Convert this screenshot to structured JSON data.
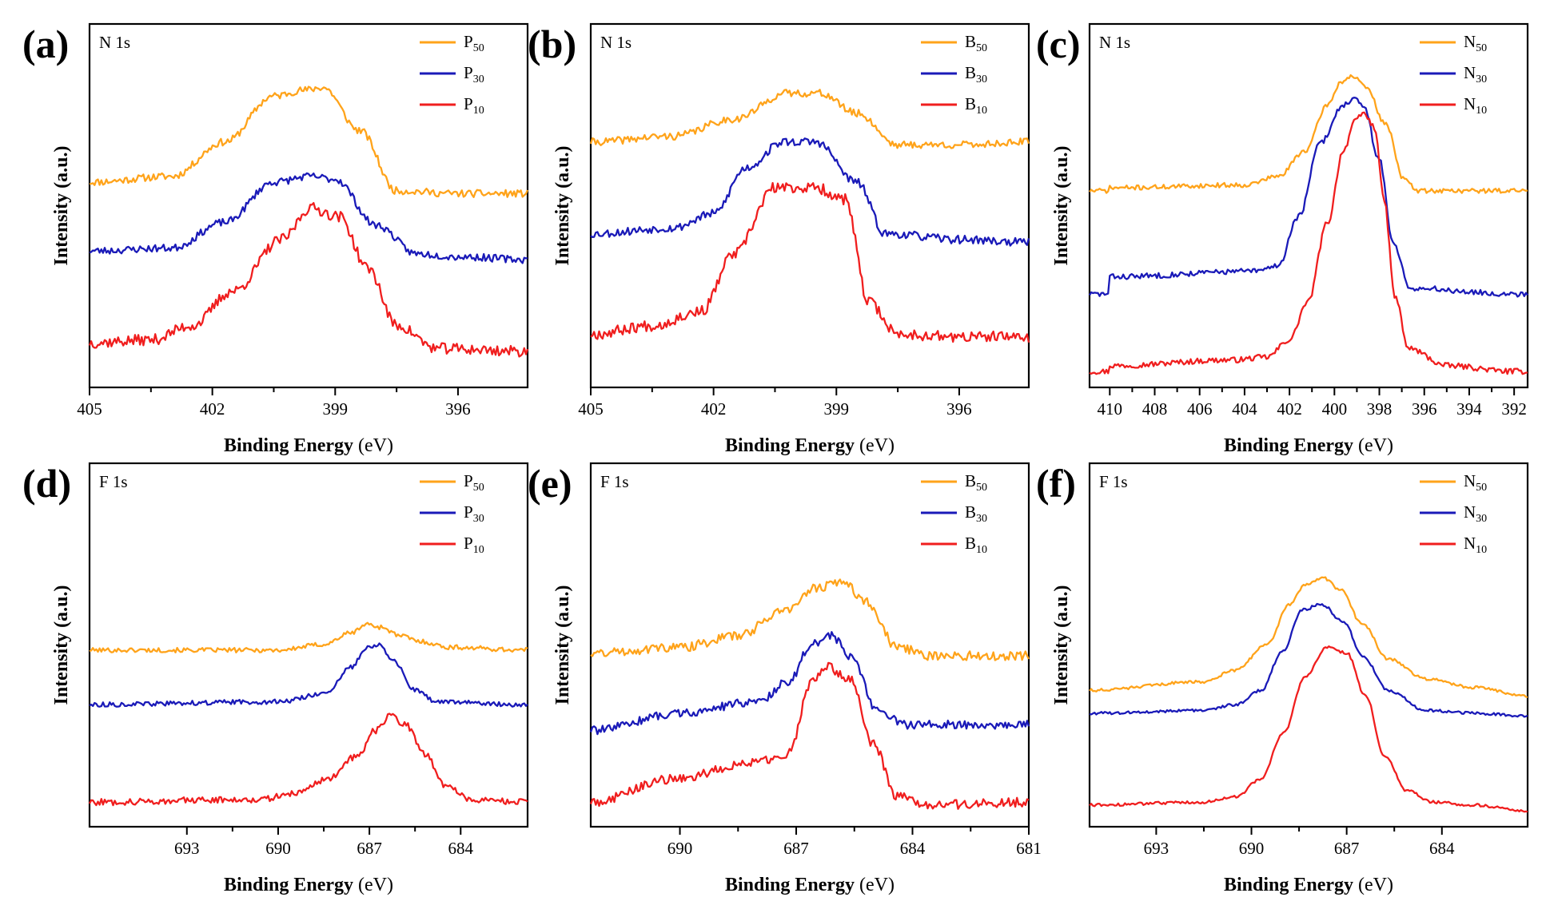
{
  "figure": {
    "axis_title_x_main": "Binding Energy",
    "axis_title_x_unit": "(eV)",
    "axis_title_y": "Intensity (a.u.)",
    "colors": {
      "c50": "#FFA31A",
      "c30": "#1A1AB8",
      "c10": "#F01E1E"
    }
  },
  "chart_data": [
    {
      "panel": "(a)",
      "element": "N 1s",
      "type": "line",
      "xlabel": "Binding Energy (eV)",
      "ylabel": "Intensity (a.u.)",
      "xlim": [
        405,
        394.3
      ],
      "xticks": [
        405,
        402,
        399,
        396
      ],
      "legend_position": "top-right",
      "series": [
        {
          "name": "P50",
          "base": "P",
          "sub": "50",
          "color": "#FFA31A",
          "seed": 11,
          "noise": 0.8,
          "x": [
            405,
            403,
            401.7,
            400.5,
            399.8,
            399.3,
            398.4,
            397.5,
            396,
            394.3
          ],
          "y": [
            66,
            68,
            80,
            96,
            98,
            99,
            84,
            63,
            62,
            62
          ]
        },
        {
          "name": "P30",
          "base": "P",
          "sub": "30",
          "color": "#1A1AB8",
          "seed": 23,
          "noise": 0.8,
          "x": [
            405,
            403,
            401.7,
            400.5,
            399.6,
            399,
            398,
            397,
            396,
            394.3
          ],
          "y": [
            42,
            43,
            52,
            66,
            68,
            67,
            51,
            41,
            40,
            39
          ]
        },
        {
          "name": "P10",
          "base": "P",
          "sub": "10",
          "color": "#F01E1E",
          "seed": 37,
          "noise": 1.2,
          "x": [
            405,
            403.5,
            402.5,
            401.5,
            400.3,
            399.6,
            398.9,
            398.2,
            397.5,
            396.5,
            394.3
          ],
          "y": [
            10,
            11,
            16,
            28,
            46,
            57,
            54,
            36,
            16,
            8,
            7
          ]
        }
      ]
    },
    {
      "panel": "(b)",
      "element": "N 1s",
      "type": "line",
      "xlabel": "Binding Energy (eV)",
      "ylabel": "Intensity (a.u.)",
      "xlim": [
        405,
        394.3
      ],
      "xticks": [
        405,
        402,
        399,
        396
      ],
      "legend_position": "top-right",
      "series": [
        {
          "name": "B50",
          "base": "B",
          "sub": "50",
          "color": "#FFA31A",
          "seed": 41,
          "noise": 0.8,
          "x": [
            405,
            403,
            401.5,
            400.2,
            399.4,
            398.5,
            397.5,
            396,
            394.3
          ],
          "y": [
            80,
            82,
            88,
            97,
            97,
            90,
            79,
            79,
            80
          ]
        },
        {
          "name": "B30",
          "base": "B",
          "sub": "30",
          "color": "#1A1AB8",
          "seed": 53,
          "noise": 0.9,
          "x": [
            405,
            403,
            402,
            401.2,
            400.3,
            399.5,
            398.5,
            397.8,
            396,
            394.3
          ],
          "y": [
            48,
            50,
            55,
            71,
            80,
            80,
            66,
            48,
            46,
            45
          ]
        },
        {
          "name": "B10",
          "base": "B",
          "sub": "10",
          "color": "#F01E1E",
          "seed": 67,
          "noise": 1.2,
          "x": [
            405,
            403.5,
            402.3,
            401.5,
            400.5,
            399.5,
            398.8,
            398.2,
            397.5,
            396,
            394.3
          ],
          "y": [
            13,
            16,
            21,
            41,
            64,
            64,
            60,
            24,
            13,
            12,
            12
          ]
        }
      ]
    },
    {
      "panel": "(c)",
      "element": "N 1s",
      "type": "line",
      "xlabel": "Binding Energy (eV)",
      "ylabel": "Intensity (a.u.)",
      "xlim": [
        410.9,
        391.4
      ],
      "xticks": [
        410,
        408,
        406,
        404,
        402,
        400,
        398,
        396,
        394,
        392
      ],
      "legend_position": "top-right",
      "series": [
        {
          "name": "N50",
          "base": "N",
          "sub": "50",
          "color": "#FFA31A",
          "seed": 71,
          "noise": 0.5,
          "x": [
            410,
            404,
            402.5,
            401.3,
            400.3,
            399.7,
            399.2,
            398.6,
            397.7,
            396.9,
            396.3,
            392
          ],
          "y": [
            64,
            65,
            68,
            77,
            93,
            101,
            103,
            99,
            86,
            67,
            63,
            63
          ]
        },
        {
          "name": "N30",
          "base": "N",
          "sub": "30",
          "color": "#1A1AB8",
          "seed": 83,
          "noise": 0.6,
          "x": [
            410,
            403.4,
            402.5,
            401.6,
            400.6,
            399.6,
            399.1,
            398.7,
            398,
            397.4,
            396.6,
            392
          ],
          "y": [
            33,
            35,
            37,
            54,
            80,
            93,
            95,
            92,
            74,
            45,
            29,
            27
          ]
        },
        {
          "name": "N10",
          "base": "N",
          "sub": "10",
          "color": "#F01E1E",
          "seed": 97,
          "noise": 0.6,
          "x": [
            410,
            404.5,
            403,
            402,
            401.2,
            400.3,
            399.6,
            399.1,
            398.7,
            398.2,
            397.8,
            397.3,
            396.7,
            395,
            392
          ],
          "y": [
            2,
            4,
            5,
            11,
            24,
            52,
            77,
            87,
            90,
            85,
            60,
            26,
            8,
            2,
            0
          ]
        }
      ]
    },
    {
      "panel": "(d)",
      "element": "F 1s",
      "type": "line",
      "xlabel": "Binding Energy (eV)",
      "ylabel": "Intensity (a.u.)",
      "xlim": [
        696.2,
        681.8
      ],
      "xticks": [
        693,
        690,
        687,
        684
      ],
      "legend_position": "top-right",
      "series": [
        {
          "name": "P50",
          "base": "P",
          "sub": "50",
          "color": "#FFA31A",
          "seed": 101,
          "noise": 0.5,
          "x": [
            696.2,
            690,
            688.5,
            687.6,
            687.1,
            686.6,
            686,
            685.3,
            684.4,
            681.8
          ],
          "y": [
            56,
            56,
            58,
            62,
            65,
            64,
            61,
            59,
            57,
            56
          ]
        },
        {
          "name": "P30",
          "base": "P",
          "sub": "30",
          "color": "#1A1AB8",
          "seed": 113,
          "noise": 0.5,
          "x": [
            696.2,
            690,
            688.4,
            687.6,
            687.1,
            686.7,
            686.2,
            685.5,
            684.8,
            681.8
          ],
          "y": [
            37,
            38,
            41,
            50,
            57,
            58,
            52,
            42,
            38,
            37
          ]
        },
        {
          "name": "P10",
          "base": "P",
          "sub": "10",
          "color": "#F01E1E",
          "seed": 127,
          "noise": 0.7,
          "x": [
            696.2,
            690.5,
            689.5,
            688.4,
            687.4,
            686.8,
            686.3,
            685.8,
            685.2,
            684.5,
            683.7,
            681.8
          ],
          "y": [
            3,
            4,
            6,
            11,
            19,
            28,
            33,
            30,
            20,
            9,
            4,
            3
          ]
        }
      ]
    },
    {
      "panel": "(e)",
      "element": "F 1s",
      "type": "line",
      "xlabel": "Binding Energy (eV)",
      "ylabel": "Intensity (a.u.)",
      "xlim": [
        692.3,
        681
      ],
      "xticks": [
        690,
        687,
        684,
        681
      ],
      "legend_position": "top-right",
      "series": [
        {
          "name": "B50",
          "base": "B",
          "sub": "50",
          "color": "#FFA31A",
          "seed": 131,
          "noise": 1.0,
          "x": [
            692.3,
            690,
            688.5,
            687.3,
            686.4,
            685.8,
            685.2,
            684.4,
            683.5,
            681
          ],
          "y": [
            55,
            57,
            61,
            70,
            78,
            80,
            73,
            57,
            54,
            54
          ]
        },
        {
          "name": "B30",
          "base": "B",
          "sub": "30",
          "color": "#1A1AB8",
          "seed": 139,
          "noise": 0.9,
          "x": [
            692.3,
            690,
            688,
            687.2,
            686.6,
            686.1,
            685.6,
            684.9,
            684.2,
            681
          ],
          "y": [
            28,
            34,
            38,
            45,
            58,
            61,
            54,
            35,
            30,
            30
          ]
        },
        {
          "name": "B10",
          "base": "B",
          "sub": "10",
          "color": "#F01E1E",
          "seed": 149,
          "noise": 1.0,
          "x": [
            692.3,
            690.2,
            688,
            687.2,
            686.6,
            686.2,
            685.6,
            685,
            684.4,
            683.6,
            681
          ],
          "y": [
            3,
            11,
            17,
            20,
            45,
            50,
            46,
            23,
            5,
            2,
            3
          ]
        }
      ]
    },
    {
      "panel": "(f)",
      "element": "F 1s",
      "type": "line",
      "xlabel": "Binding Energy (eV)",
      "ylabel": "Intensity (a.u.)",
      "xlim": [
        695.1,
        681.3
      ],
      "xticks": [
        693,
        690,
        687,
        684
      ],
      "legend_position": "top-right",
      "series": [
        {
          "name": "N50",
          "base": "N",
          "sub": "50",
          "color": "#FFA31A",
          "seed": 151,
          "noise": 0.3,
          "x": [
            695.1,
            691.5,
            690.5,
            689.5,
            688.8,
            688.3,
            687.7,
            687.2,
            686.5,
            685.7,
            684.5,
            683,
            681.3
          ],
          "y": [
            42,
            45,
            49,
            58,
            72,
            79,
            81,
            77,
            65,
            53,
            46,
            43,
            40
          ]
        },
        {
          "name": "N30",
          "base": "N",
          "sub": "30",
          "color": "#1A1AB8",
          "seed": 163,
          "noise": 0.3,
          "x": [
            695.1,
            691.5,
            690.5,
            689.7,
            689,
            688.4,
            687.8,
            687.1,
            686.5,
            685.7,
            684.5,
            683,
            681.3
          ],
          "y": [
            34,
            35,
            37,
            42,
            56,
            70,
            72,
            66,
            54,
            42,
            35,
            34,
            33
          ]
        },
        {
          "name": "N10",
          "base": "N",
          "sub": "10",
          "color": "#F01E1E",
          "seed": 173,
          "noise": 0.3,
          "x": [
            695.1,
            691.5,
            690.5,
            689.7,
            689,
            688.3,
            687.6,
            687,
            686.4,
            685.8,
            685.1,
            684.3,
            683,
            681.3
          ],
          "y": [
            2,
            3,
            5,
            11,
            27,
            47,
            57,
            55,
            40,
            19,
            7,
            3,
            2,
            0
          ]
        }
      ]
    }
  ]
}
